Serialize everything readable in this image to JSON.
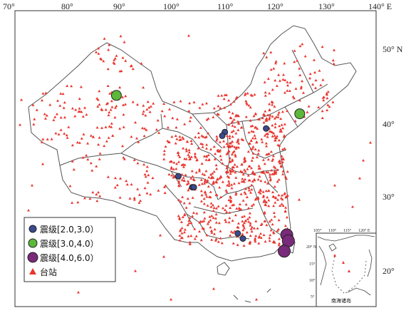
{
  "axes": {
    "lon_ticks": [
      "70°",
      "80°",
      "90°",
      "100°",
      "110°",
      "120°",
      "130°",
      "140° E"
    ],
    "lat_ticks": [
      "50° N",
      "40°",
      "30°",
      "20°"
    ]
  },
  "legend": {
    "items": [
      {
        "label": "震级[2.0,3.0）",
        "color": "#3b4a8c"
      },
      {
        "label": "震级[3.0,4.0）",
        "color": "#5cb83a"
      },
      {
        "label": "震级[4.0,6.0）",
        "color": "#7a2a7a"
      },
      {
        "label": "台站",
        "color": "#e8362f"
      }
    ]
  },
  "inset": {
    "lon_ticks": [
      "105°",
      "110°",
      "115°",
      "120° E"
    ],
    "lat_ticks": [
      "20° N",
      "15°",
      "10°",
      "5°"
    ],
    "label": "南海诸岛"
  },
  "colors": {
    "station": "#e8362f",
    "mag_2_3": "#3b4a8c",
    "mag_3_4": "#5cb83a",
    "mag_4_6": "#7a2a7a",
    "border": "#555555"
  },
  "earthquakes": [
    {
      "lon": 89.5,
      "lat": 44.0,
      "class": "mag_3_4"
    },
    {
      "lon": 125.0,
      "lat": 41.5,
      "class": "mag_3_4"
    },
    {
      "lon": 110.5,
      "lat": 39.0,
      "class": "mag_2_3"
    },
    {
      "lon": 110.0,
      "lat": 38.5,
      "class": "mag_2_3"
    },
    {
      "lon": 104.2,
      "lat": 31.5,
      "class": "mag_2_3"
    },
    {
      "lon": 104.5,
      "lat": 31.5,
      "class": "mag_2_3"
    },
    {
      "lon": 101.5,
      "lat": 33.0,
      "class": "mag_2_3"
    },
    {
      "lon": 118.5,
      "lat": 39.5,
      "class": "mag_2_3"
    },
    {
      "lon": 113.0,
      "lat": 25.2,
      "class": "mag_2_3"
    },
    {
      "lon": 114.0,
      "lat": 24.5,
      "class": "mag_2_3"
    },
    {
      "lon": 122.5,
      "lat": 25.0,
      "class": "mag_4_6"
    },
    {
      "lon": 122.8,
      "lat": 24.2,
      "class": "mag_4_6"
    },
    {
      "lon": 122.0,
      "lat": 22.8,
      "class": "mag_4_6"
    }
  ]
}
